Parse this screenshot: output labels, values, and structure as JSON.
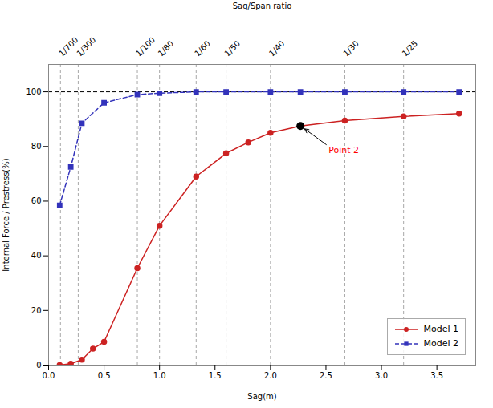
{
  "chart_data": {
    "type": "line",
    "xlabel": "Sag(m)",
    "ylabel": "Internal Force / Prestress(%)",
    "x2label": "Sag/Span ratio",
    "xlim": [
      0.0,
      3.85
    ],
    "ylim": [
      0,
      110
    ],
    "xticks": [
      {
        "value": 0.0,
        "label": "0.0"
      },
      {
        "value": 0.5,
        "label": "0.5"
      },
      {
        "value": 1.0,
        "label": "1.0"
      },
      {
        "value": 1.5,
        "label": "1.5"
      },
      {
        "value": 2.0,
        "label": "2.0"
      },
      {
        "value": 2.5,
        "label": "2.5"
      },
      {
        "value": 3.0,
        "label": "3.0"
      },
      {
        "value": 3.5,
        "label": "3.5"
      }
    ],
    "yticks": [
      0,
      20,
      40,
      60,
      80,
      100
    ],
    "x2lim": [
      0.0,
      3.85
    ],
    "x2ticks": [
      {
        "value": 0.107,
        "label": "1/700"
      },
      {
        "value": 0.267,
        "label": "1/300"
      },
      {
        "value": 0.8,
        "label": "1/100"
      },
      {
        "value": 1.0,
        "label": "1/80"
      },
      {
        "value": 1.33,
        "label": "1/60"
      },
      {
        "value": 1.6,
        "label": "1/50"
      },
      {
        "value": 2.0,
        "label": "1/40"
      },
      {
        "value": 2.67,
        "label": "1/30"
      },
      {
        "value": 3.2,
        "label": "1/25"
      }
    ],
    "reference_lines": [
      {
        "axis": "y",
        "value": 100
      }
    ],
    "series": [
      {
        "name": "Model 1",
        "color": "#cc2222",
        "marker": "circle",
        "line_style": "solid",
        "x": [
          0.1,
          0.2,
          0.3,
          0.4,
          0.5,
          0.8,
          1.0,
          1.33,
          1.6,
          1.8,
          2.0,
          2.27,
          2.67,
          3.2,
          3.7
        ],
        "values": [
          0.0,
          0.5,
          2.0,
          6.0,
          8.5,
          35.5,
          51.0,
          69.0,
          77.5,
          81.5,
          85.0,
          87.5,
          89.5,
          91.0,
          92.0
        ]
      },
      {
        "name": "Model 2",
        "color": "#3333bb",
        "marker": "square",
        "line_style": "dashed",
        "x": [
          0.1,
          0.2,
          0.3,
          0.5,
          0.8,
          1.0,
          1.33,
          1.6,
          2.0,
          2.27,
          2.67,
          3.2,
          3.7
        ],
        "values": [
          58.5,
          72.5,
          88.5,
          96.0,
          99.0,
          99.5,
          100.0,
          100.0,
          100.0,
          100.0,
          100.0,
          100.0,
          100.0
        ]
      }
    ],
    "annotations": [
      {
        "text": "Point 2",
        "x": 2.27,
        "y": 87.5,
        "color": "red"
      }
    ],
    "legend": "lower right",
    "grid": false
  }
}
